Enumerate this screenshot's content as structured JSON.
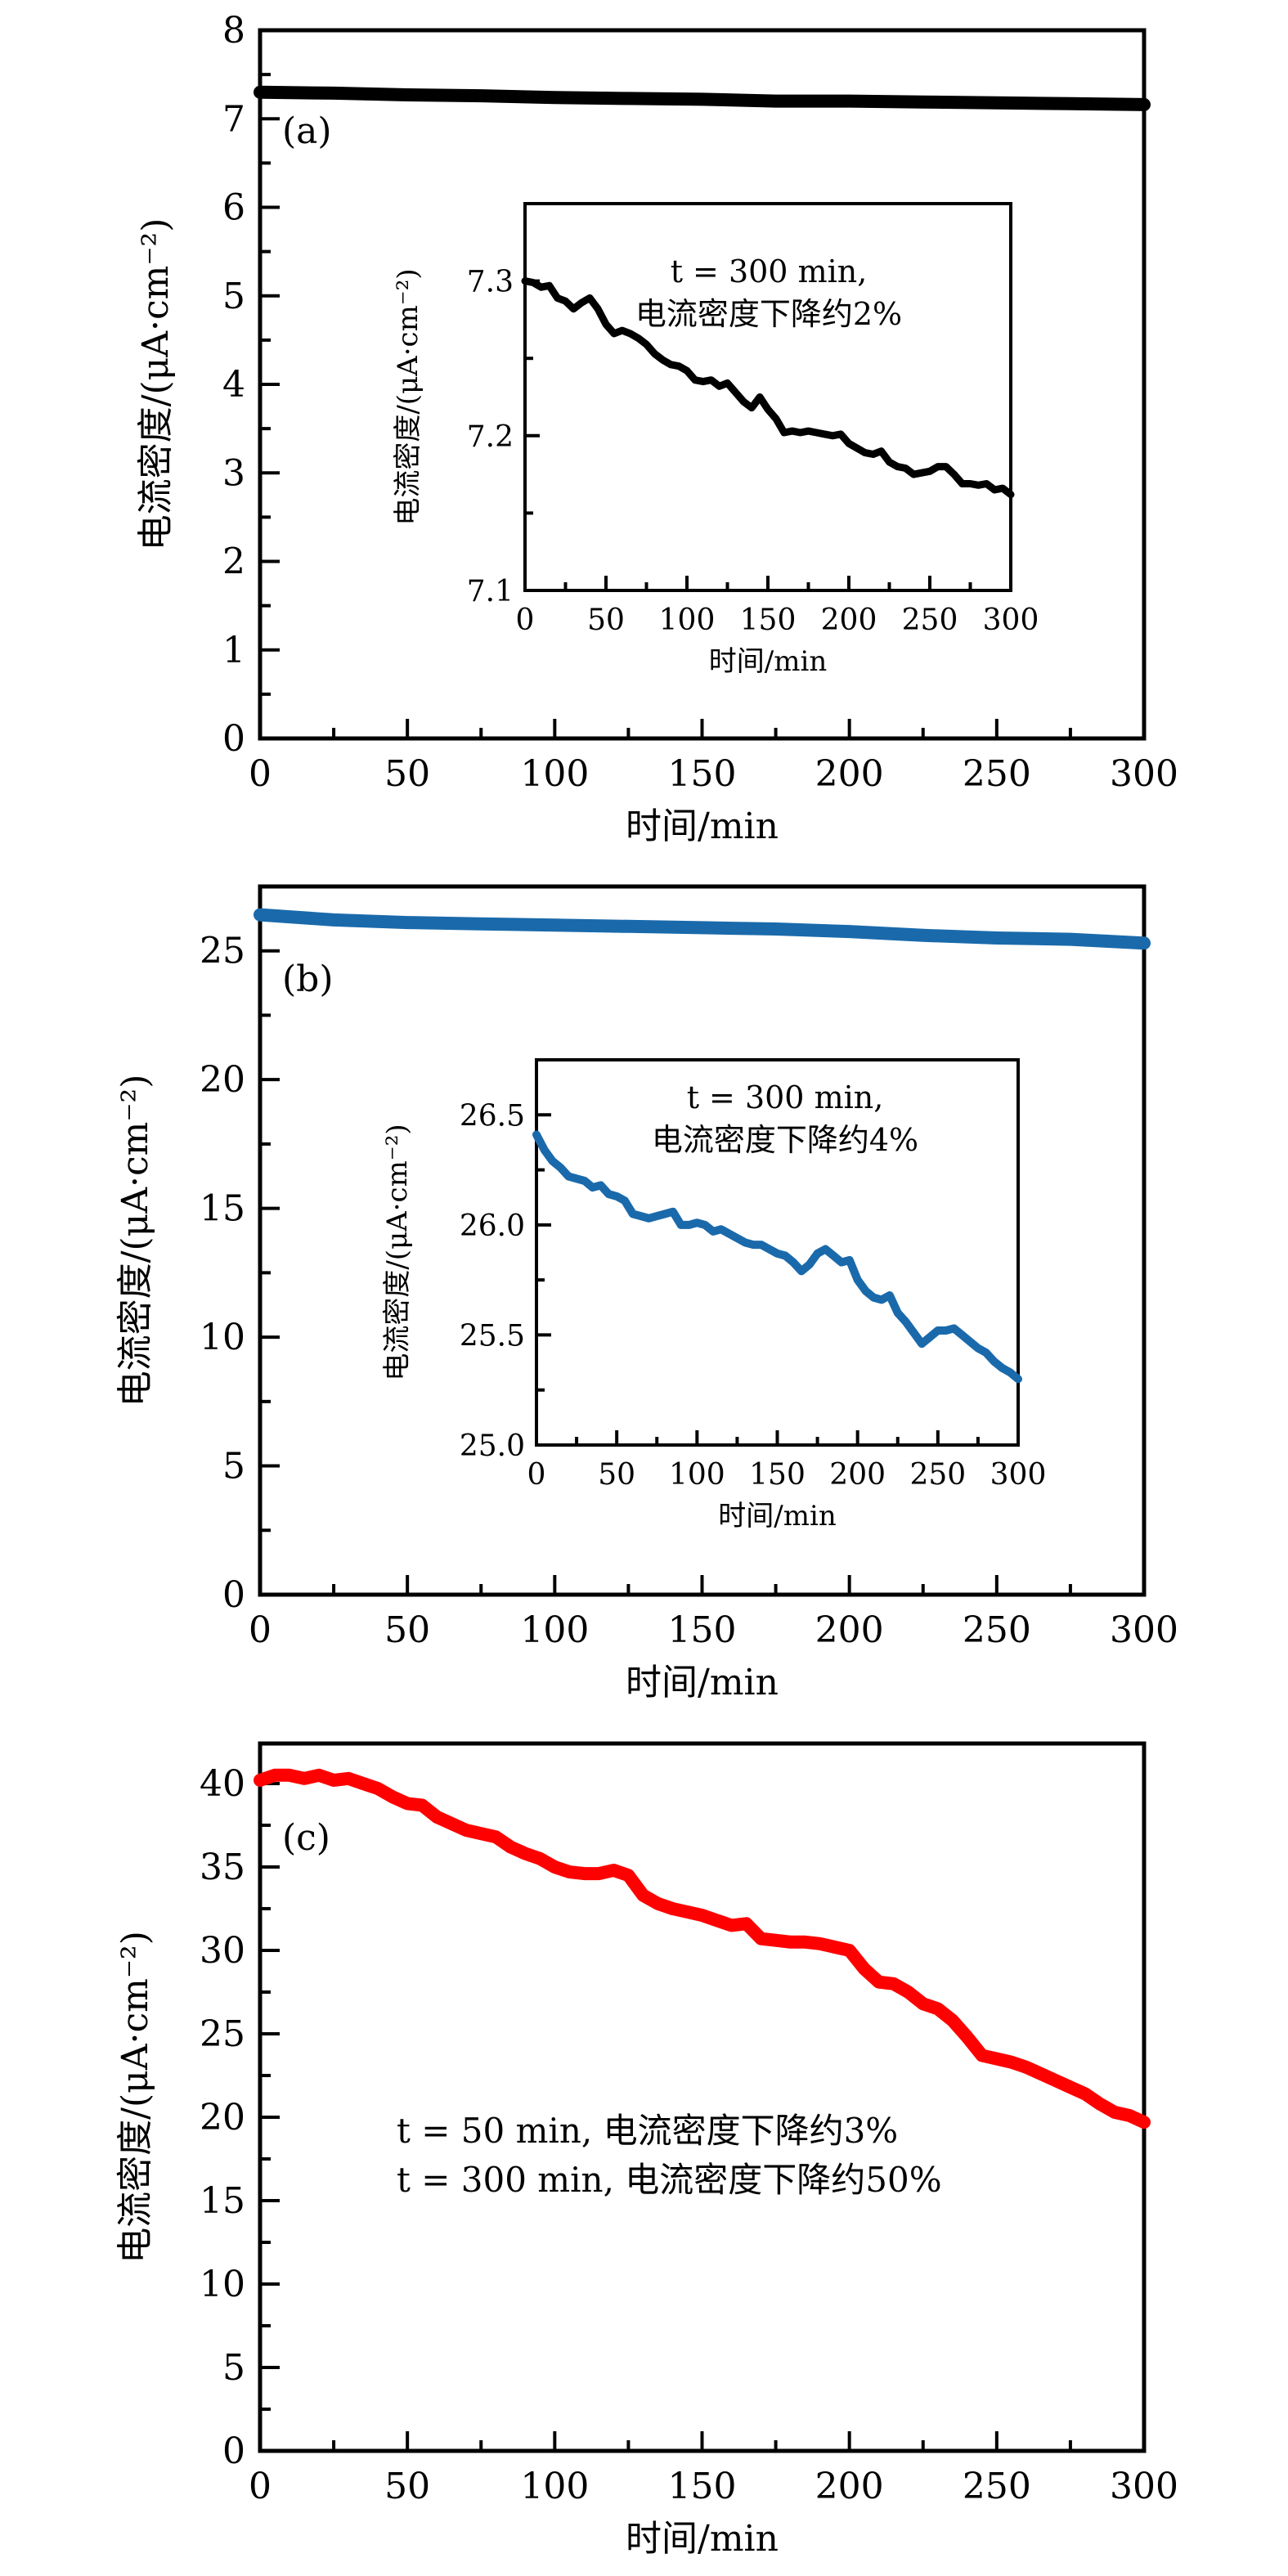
{
  "chart_data": [
    {
      "id": "a",
      "type": "line",
      "panel_label": "(a)",
      "xlabel": "时间/min",
      "ylabel": "电流密度/(μA·cm⁻²)",
      "xlim": [
        0,
        300
      ],
      "ylim": [
        0,
        8
      ],
      "xticks": [
        0,
        50,
        100,
        150,
        200,
        250,
        300
      ],
      "yticks": [
        0,
        1,
        2,
        3,
        4,
        5,
        6,
        7,
        8
      ],
      "color": "#000000",
      "series": [
        {
          "name": "main-a",
          "x": [
            0,
            25,
            50,
            75,
            100,
            125,
            150,
            175,
            200,
            225,
            250,
            275,
            300
          ],
          "y": [
            7.3,
            7.29,
            7.27,
            7.26,
            7.24,
            7.23,
            7.22,
            7.2,
            7.2,
            7.19,
            7.18,
            7.17,
            7.16
          ]
        }
      ],
      "inset": {
        "xlabel": "时间/min",
        "ylabel": "电流密度/(μA·cm⁻²)",
        "xlim": [
          0,
          300
        ],
        "ylim": [
          7.1,
          7.35
        ],
        "xticks": [
          0,
          50,
          100,
          150,
          200,
          250,
          300
        ],
        "yticks": [
          7.1,
          7.2,
          7.3
        ],
        "ytick_labels": [
          "7.1",
          "7.2",
          "7.3"
        ],
        "annotation": [
          "t = 300 min,",
          "电流密度下降约2%"
        ],
        "x": [
          0,
          5,
          10,
          15,
          20,
          25,
          30,
          35,
          40,
          45,
          50,
          55,
          60,
          65,
          70,
          75,
          80,
          85,
          90,
          95,
          100,
          105,
          110,
          115,
          120,
          125,
          130,
          135,
          140,
          145,
          150,
          155,
          160,
          165,
          170,
          175,
          180,
          185,
          190,
          195,
          200,
          205,
          210,
          215,
          220,
          225,
          230,
          235,
          240,
          245,
          250,
          255,
          260,
          265,
          270,
          275,
          280,
          285,
          290,
          295,
          300
        ],
        "y": [
          7.3,
          7.299,
          7.296,
          7.297,
          7.289,
          7.287,
          7.282,
          7.286,
          7.289,
          7.282,
          7.272,
          7.266,
          7.268,
          7.266,
          7.263,
          7.259,
          7.253,
          7.249,
          7.246,
          7.245,
          7.242,
          7.236,
          7.235,
          7.236,
          7.232,
          7.234,
          7.228,
          7.222,
          7.218,
          7.225,
          7.217,
          7.211,
          7.202,
          7.203,
          7.202,
          7.203,
          7.202,
          7.201,
          7.2,
          7.201,
          7.195,
          7.192,
          7.189,
          7.188,
          7.19,
          7.183,
          7.18,
          7.179,
          7.175,
          7.176,
          7.177,
          7.18,
          7.18,
          7.175,
          7.169,
          7.169,
          7.168,
          7.169,
          7.165,
          7.166,
          7.162
        ]
      }
    },
    {
      "id": "b",
      "type": "line",
      "panel_label": "(b)",
      "xlabel": "时间/min",
      "ylabel": "电流密度/(μA·cm⁻²)",
      "xlim": [
        0,
        300
      ],
      "ylim": [
        0,
        27.5
      ],
      "xticks": [
        0,
        50,
        100,
        150,
        200,
        250,
        300
      ],
      "yticks": [
        0,
        5,
        10,
        15,
        20,
        25
      ],
      "color": "#1a6aab",
      "series": [
        {
          "name": "main-b",
          "x": [
            0,
            25,
            50,
            75,
            100,
            125,
            150,
            175,
            200,
            225,
            250,
            275,
            300
          ],
          "y": [
            26.4,
            26.2,
            26.1,
            26.05,
            26.0,
            25.95,
            25.9,
            25.85,
            25.75,
            25.6,
            25.5,
            25.45,
            25.3
          ]
        }
      ],
      "inset": {
        "xlabel": "时间/min",
        "ylabel": "电流密度/(μA·cm⁻²)",
        "xlim": [
          0,
          300
        ],
        "ylim": [
          25.0,
          26.75
        ],
        "xticks": [
          0,
          50,
          100,
          150,
          200,
          250,
          300
        ],
        "yticks": [
          25.0,
          25.5,
          26.0,
          26.5
        ],
        "ytick_labels": [
          "25.0",
          "25.5",
          "26.0",
          "26.5"
        ],
        "annotation": [
          "t = 300 min,",
          "电流密度下降约4%"
        ],
        "x": [
          0,
          5,
          10,
          15,
          20,
          25,
          30,
          35,
          40,
          45,
          50,
          55,
          60,
          65,
          70,
          75,
          80,
          85,
          90,
          95,
          100,
          105,
          110,
          115,
          120,
          125,
          130,
          135,
          140,
          145,
          150,
          155,
          160,
          165,
          170,
          175,
          180,
          185,
          190,
          195,
          200,
          205,
          210,
          215,
          220,
          225,
          230,
          235,
          240,
          245,
          250,
          255,
          260,
          265,
          270,
          275,
          280,
          285,
          290,
          295,
          300
        ],
        "y": [
          26.41,
          26.34,
          26.29,
          26.26,
          26.22,
          26.21,
          26.2,
          26.17,
          26.18,
          26.14,
          26.13,
          26.11,
          26.05,
          26.04,
          26.03,
          26.04,
          26.05,
          26.06,
          26.0,
          26.0,
          26.01,
          26.0,
          25.97,
          25.98,
          25.96,
          25.94,
          25.92,
          25.91,
          25.91,
          25.89,
          25.87,
          25.86,
          25.83,
          25.79,
          25.82,
          25.87,
          25.89,
          25.86,
          25.83,
          25.84,
          25.75,
          25.7,
          25.67,
          25.66,
          25.68,
          25.6,
          25.56,
          25.51,
          25.46,
          25.49,
          25.52,
          25.52,
          25.53,
          25.5,
          25.47,
          25.44,
          25.42,
          25.38,
          25.35,
          25.33,
          25.3
        ]
      }
    },
    {
      "id": "c",
      "type": "line",
      "panel_label": "(c)",
      "xlabel": "时间/min",
      "ylabel": "电流密度/(μA·cm⁻²)",
      "xlim": [
        0,
        300
      ],
      "ylim": [
        0,
        42.4
      ],
      "xticks": [
        0,
        50,
        100,
        150,
        200,
        250,
        300
      ],
      "yticks": [
        0,
        5,
        10,
        15,
        20,
        25,
        30,
        35,
        40
      ],
      "color": "#ff0000",
      "annotation": [
        "t = 50 min, 电流密度下降约3%",
        "t = 300 min, 电流密度下降约50%"
      ],
      "series": [
        {
          "name": "main-c",
          "x": [
            0,
            5,
            10,
            15,
            20,
            25,
            30,
            35,
            40,
            45,
            50,
            55,
            60,
            65,
            70,
            75,
            80,
            85,
            90,
            95,
            100,
            105,
            110,
            115,
            120,
            125,
            130,
            135,
            140,
            145,
            150,
            155,
            160,
            165,
            170,
            175,
            180,
            185,
            190,
            195,
            200,
            205,
            210,
            215,
            220,
            225,
            230,
            235,
            240,
            245,
            250,
            255,
            260,
            265,
            270,
            275,
            280,
            285,
            290,
            295,
            300
          ],
          "y": [
            40.2,
            40.5,
            40.5,
            40.3,
            40.5,
            40.2,
            40.3,
            40.0,
            39.7,
            39.2,
            38.8,
            38.7,
            38.0,
            37.6,
            37.2,
            37.0,
            36.8,
            36.2,
            35.8,
            35.5,
            35.0,
            34.7,
            34.6,
            34.6,
            34.8,
            34.5,
            33.3,
            32.8,
            32.5,
            32.3,
            32.1,
            31.8,
            31.5,
            31.6,
            30.7,
            30.6,
            30.5,
            30.5,
            30.4,
            30.2,
            30.0,
            28.9,
            28.1,
            28.0,
            27.5,
            26.8,
            26.5,
            25.8,
            24.8,
            23.7,
            23.5,
            23.3,
            23.0,
            22.6,
            22.2,
            21.8,
            21.4,
            20.8,
            20.3,
            20.1,
            19.7
          ]
        }
      ]
    }
  ]
}
